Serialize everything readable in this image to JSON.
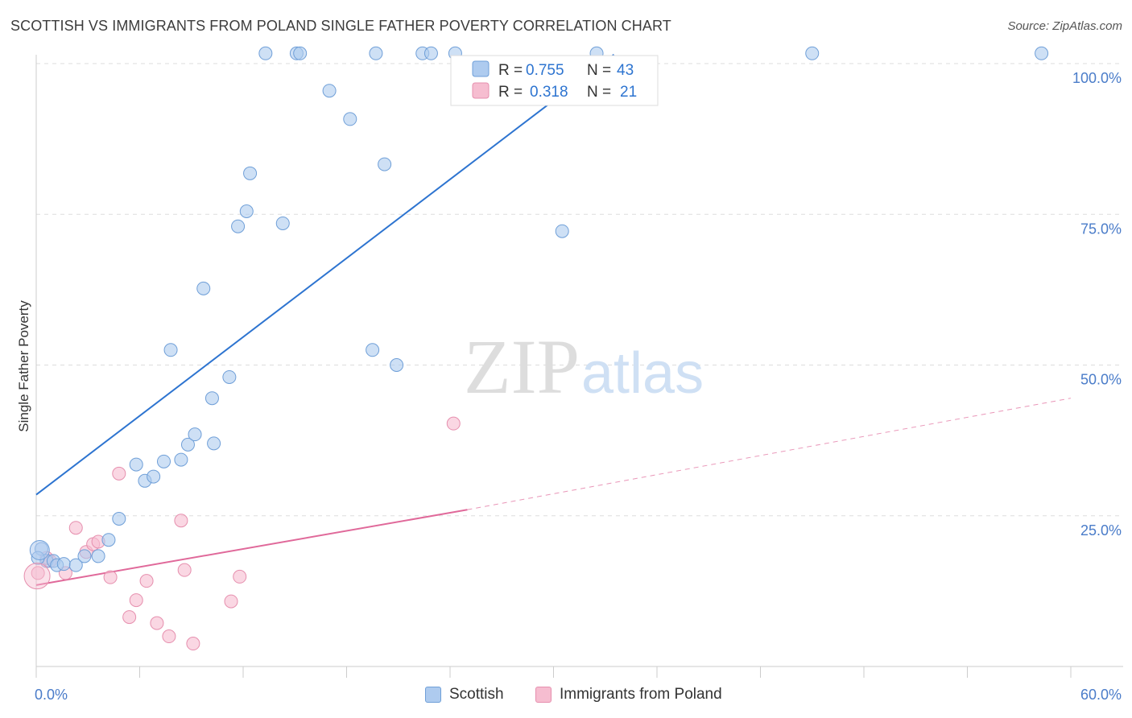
{
  "header": {
    "title": "SCOTTISH VS IMMIGRANTS FROM POLAND SINGLE FATHER POVERTY CORRELATION CHART",
    "source": "Source: ZipAtlas.com"
  },
  "watermark": {
    "part1": "ZIP",
    "part2": "atlas"
  },
  "legend_top": {
    "rows": [
      {
        "r_label": "R =",
        "r_value": "0.755",
        "n_label": "N =",
        "n_value": "43"
      },
      {
        "r_label": "R =",
        "r_value": "0.318",
        "n_label": "N =",
        "n_value": "21"
      }
    ]
  },
  "legend_bottom": {
    "items": [
      {
        "label": "Scottish"
      },
      {
        "label": "Immigrants from Poland"
      }
    ]
  },
  "colors": {
    "scottish_fill": "#aecbef",
    "scottish_stroke": "#6f9fd8",
    "scottish_line": "#2d74d0",
    "poland_fill": "#f6bdd0",
    "poland_stroke": "#e68fae",
    "poland_line": "#e0699a",
    "tick_label": "#4a7cc9",
    "grid": "#dddddd"
  },
  "chart_data": {
    "type": "scatter",
    "title": "SCOTTISH VS IMMIGRANTS FROM POLAND SINGLE FATHER POVERTY CORRELATION CHART",
    "xlabel": "",
    "ylabel": "Single Father Poverty",
    "xlim": [
      0,
      60
    ],
    "ylim": [
      0,
      105
    ],
    "x_tick_labels": [
      "0.0%",
      "60.0%"
    ],
    "y_ticks": [
      {
        "value": 25,
        "label": "25.0%"
      },
      {
        "value": 50,
        "label": "50.0%"
      },
      {
        "value": 75,
        "label": "75.0%"
      },
      {
        "value": 100,
        "label": "100.0%"
      }
    ],
    "series": [
      {
        "name": "Scottish",
        "r": 0.755,
        "n": 43,
        "trend": {
          "x0": 0,
          "y0": 28.5,
          "x1": 33.5,
          "y1": 101.5
        },
        "points": [
          [
            0.3,
            19.5
          ],
          [
            0.6,
            17.5
          ],
          [
            1.0,
            17.5
          ],
          [
            1.2,
            16.8
          ],
          [
            1.6,
            17.0
          ],
          [
            2.3,
            16.8
          ],
          [
            2.8,
            18.3
          ],
          [
            3.6,
            18.3
          ],
          [
            4.2,
            21.0
          ],
          [
            4.8,
            24.5
          ],
          [
            5.8,
            33.5
          ],
          [
            6.3,
            30.8
          ],
          [
            6.8,
            31.5
          ],
          [
            7.4,
            34.0
          ],
          [
            8.4,
            34.3
          ],
          [
            8.8,
            36.8
          ],
          [
            9.2,
            38.5
          ],
          [
            10.3,
            37.0
          ],
          [
            10.2,
            44.5
          ],
          [
            11.2,
            48.0
          ],
          [
            7.8,
            52.5
          ],
          [
            9.7,
            62.7
          ],
          [
            11.7,
            73.0
          ],
          [
            12.2,
            75.5
          ],
          [
            14.3,
            73.5
          ],
          [
            12.4,
            81.8
          ],
          [
            19.5,
            52.5
          ],
          [
            20.9,
            50.0
          ],
          [
            20.2,
            83.3
          ],
          [
            30.5,
            72.2
          ],
          [
            17.0,
            95.5
          ],
          [
            18.2,
            90.8
          ],
          [
            13.3,
            101.7
          ],
          [
            15.1,
            101.7
          ],
          [
            15.3,
            101.7
          ],
          [
            19.7,
            101.7
          ],
          [
            22.4,
            101.7
          ],
          [
            22.9,
            101.7
          ],
          [
            24.3,
            101.7
          ],
          [
            32.5,
            101.7
          ],
          [
            45.0,
            101.7
          ],
          [
            58.3,
            101.7
          ],
          [
            0.1,
            18.0
          ]
        ]
      },
      {
        "name": "Immigrants from Poland",
        "r": 0.318,
        "n": 21,
        "trend": {
          "x0": 0,
          "y0": 13.5,
          "x1": 25,
          "y1": 26.0
        },
        "trend_ext": {
          "x0": 25,
          "y0": 26.0,
          "x1": 60,
          "y1": 44.5
        },
        "points": [
          [
            0.1,
            15.5
          ],
          [
            0.8,
            17.5
          ],
          [
            1.7,
            15.5
          ],
          [
            2.3,
            23.0
          ],
          [
            2.9,
            19.0
          ],
          [
            3.3,
            20.3
          ],
          [
            3.6,
            20.7
          ],
          [
            4.3,
            14.8
          ],
          [
            4.8,
            32.0
          ],
          [
            5.4,
            8.2
          ],
          [
            5.8,
            11.0
          ],
          [
            6.4,
            14.2
          ],
          [
            7.0,
            7.2
          ],
          [
            7.7,
            5.0
          ],
          [
            8.4,
            24.2
          ],
          [
            8.6,
            16.0
          ],
          [
            9.1,
            3.8
          ],
          [
            11.3,
            10.8
          ],
          [
            11.8,
            14.9
          ],
          [
            24.2,
            40.3
          ],
          [
            0.6,
            18.0
          ]
        ]
      }
    ]
  }
}
